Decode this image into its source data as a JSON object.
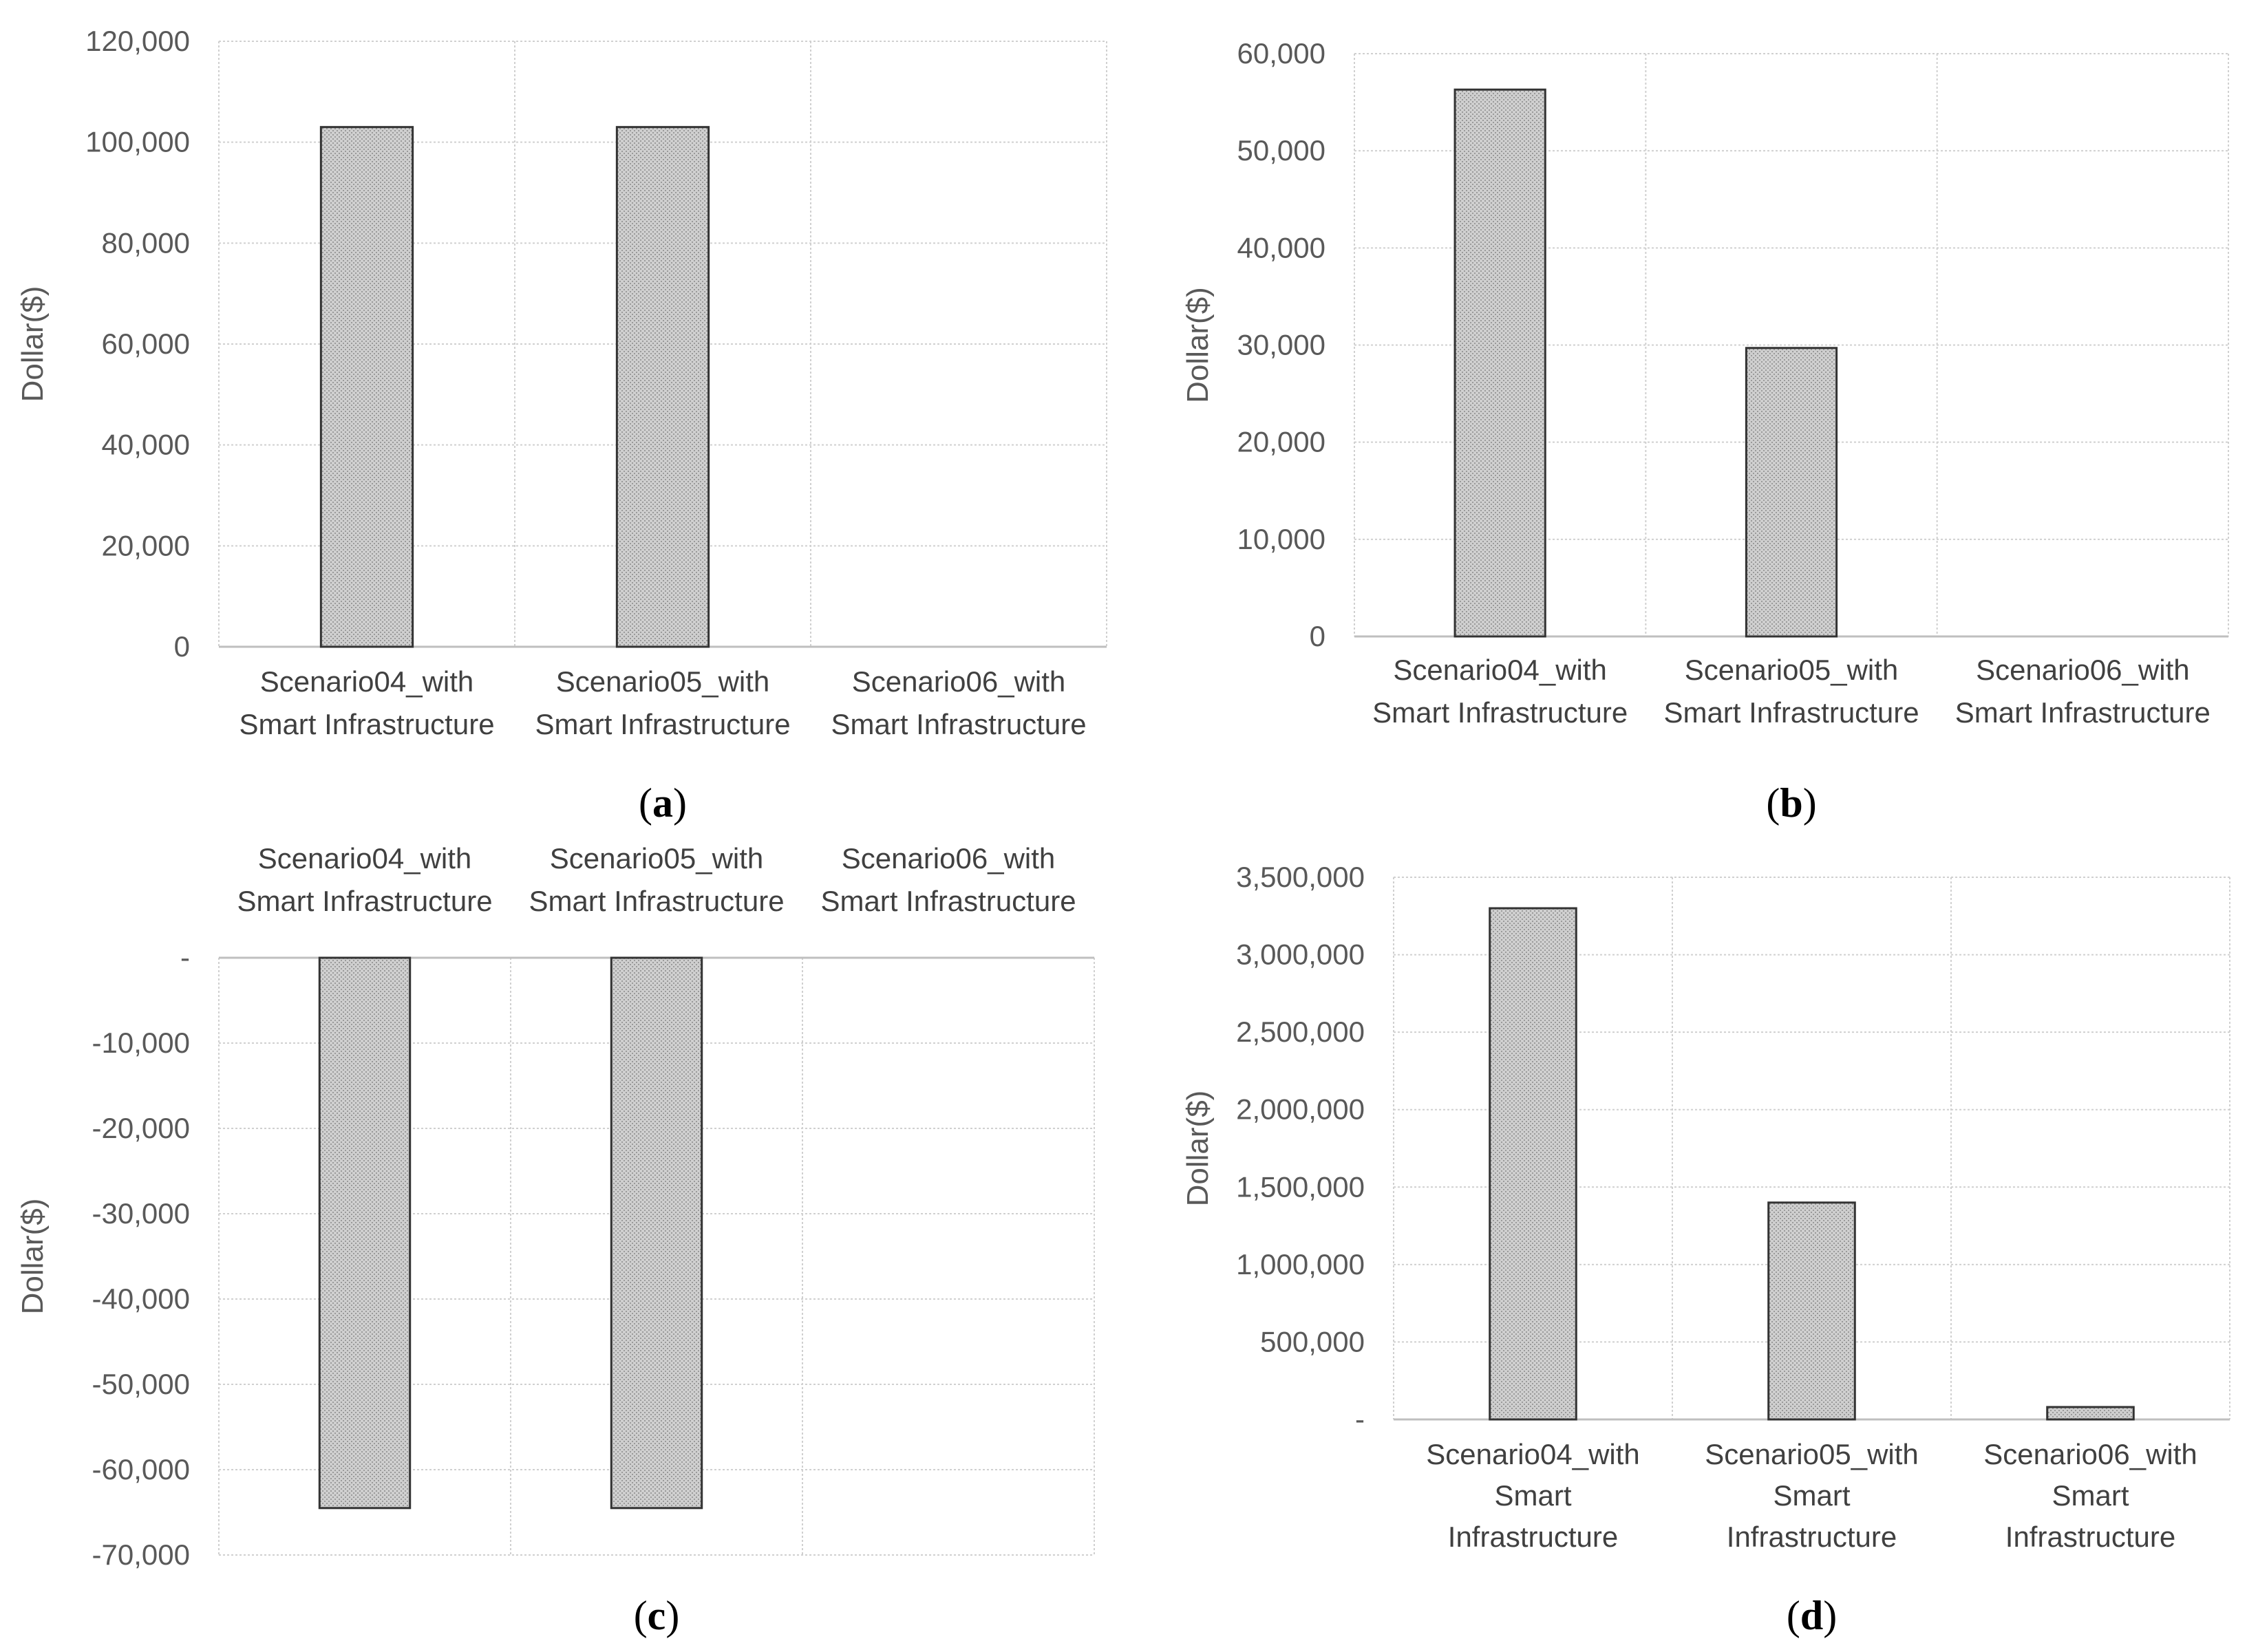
{
  "colors": {
    "bar_fill": "#c9c9c9",
    "bar_stroke": "#333333",
    "grid": "#d0d0d0",
    "tick_text": "#595959"
  },
  "chart_data": [
    {
      "id": "a",
      "type": "bar",
      "panel_label": "a",
      "title": "",
      "xlabel": "",
      "ylabel": "Dollar($)",
      "categories": [
        [
          "Scenario04_with",
          "Smart Infrastructure"
        ],
        [
          "Scenario05_with",
          "Smart Infrastructure"
        ],
        [
          "Scenario06_with",
          "Smart Infrastructure"
        ]
      ],
      "values": [
        103000,
        103000,
        0
      ],
      "ylim": [
        0,
        120000
      ],
      "yticks": [
        0,
        20000,
        40000,
        60000,
        80000,
        100000,
        120000
      ],
      "ytick_labels": [
        "0",
        "20,000",
        "40,000",
        "60,000",
        "80,000",
        "100,000",
        "120,000"
      ],
      "category_axis": "bottom",
      "grid": true
    },
    {
      "id": "b",
      "type": "bar",
      "panel_label": "b",
      "title": "",
      "xlabel": "",
      "ylabel": "Dollar($)",
      "categories": [
        [
          "Scenario04_with",
          "Smart Infrastructure"
        ],
        [
          "Scenario05_with",
          "Smart Infrastructure"
        ],
        [
          "Scenario06_with",
          "Smart Infrastructure"
        ]
      ],
      "values": [
        56300,
        29700,
        0
      ],
      "ylim": [
        0,
        60000
      ],
      "yticks": [
        0,
        10000,
        20000,
        30000,
        40000,
        50000,
        60000
      ],
      "ytick_labels": [
        "0",
        "10,000",
        "20,000",
        "30,000",
        "40,000",
        "50,000",
        "60,000"
      ],
      "category_axis": "bottom",
      "grid": true
    },
    {
      "id": "c",
      "type": "bar",
      "panel_label": "c",
      "title": "",
      "xlabel": "",
      "ylabel": "Dollar($)",
      "categories": [
        [
          "Scenario04_with",
          "Smart Infrastructure"
        ],
        [
          "Scenario05_with",
          "Smart Infrastructure"
        ],
        [
          "Scenario06_with",
          "Smart Infrastructure"
        ]
      ],
      "values": [
        -64500,
        -64500,
        0
      ],
      "ylim": [
        -70000,
        0
      ],
      "yticks": [
        0,
        -10000,
        -20000,
        -30000,
        -40000,
        -50000,
        -60000,
        -70000
      ],
      "ytick_labels": [
        "-",
        "-10,000",
        "-20,000",
        "-30,000",
        "-40,000",
        "-50,000",
        "-60,000",
        "-70,000"
      ],
      "category_axis": "top",
      "grid": true
    },
    {
      "id": "d",
      "type": "bar",
      "panel_label": "d",
      "title": "",
      "xlabel": "",
      "ylabel": "Dollar($)",
      "categories": [
        [
          "Scenario04_with",
          "Smart",
          "Infrastructure"
        ],
        [
          "Scenario05_with",
          "Smart",
          "Infrastructure"
        ],
        [
          "Scenario06_with",
          "Smart",
          "Infrastructure"
        ]
      ],
      "values": [
        3300000,
        1400000,
        80000
      ],
      "ylim": [
        0,
        3500000
      ],
      "yticks": [
        0,
        500000,
        1000000,
        1500000,
        2000000,
        2500000,
        3000000,
        3500000
      ],
      "ytick_labels": [
        "-",
        "500,000",
        "1,000,000",
        "1,500,000",
        "2,000,000",
        "2,500,000",
        "3,000,000",
        "3,500,000"
      ],
      "category_axis": "bottom",
      "grid": true
    }
  ]
}
